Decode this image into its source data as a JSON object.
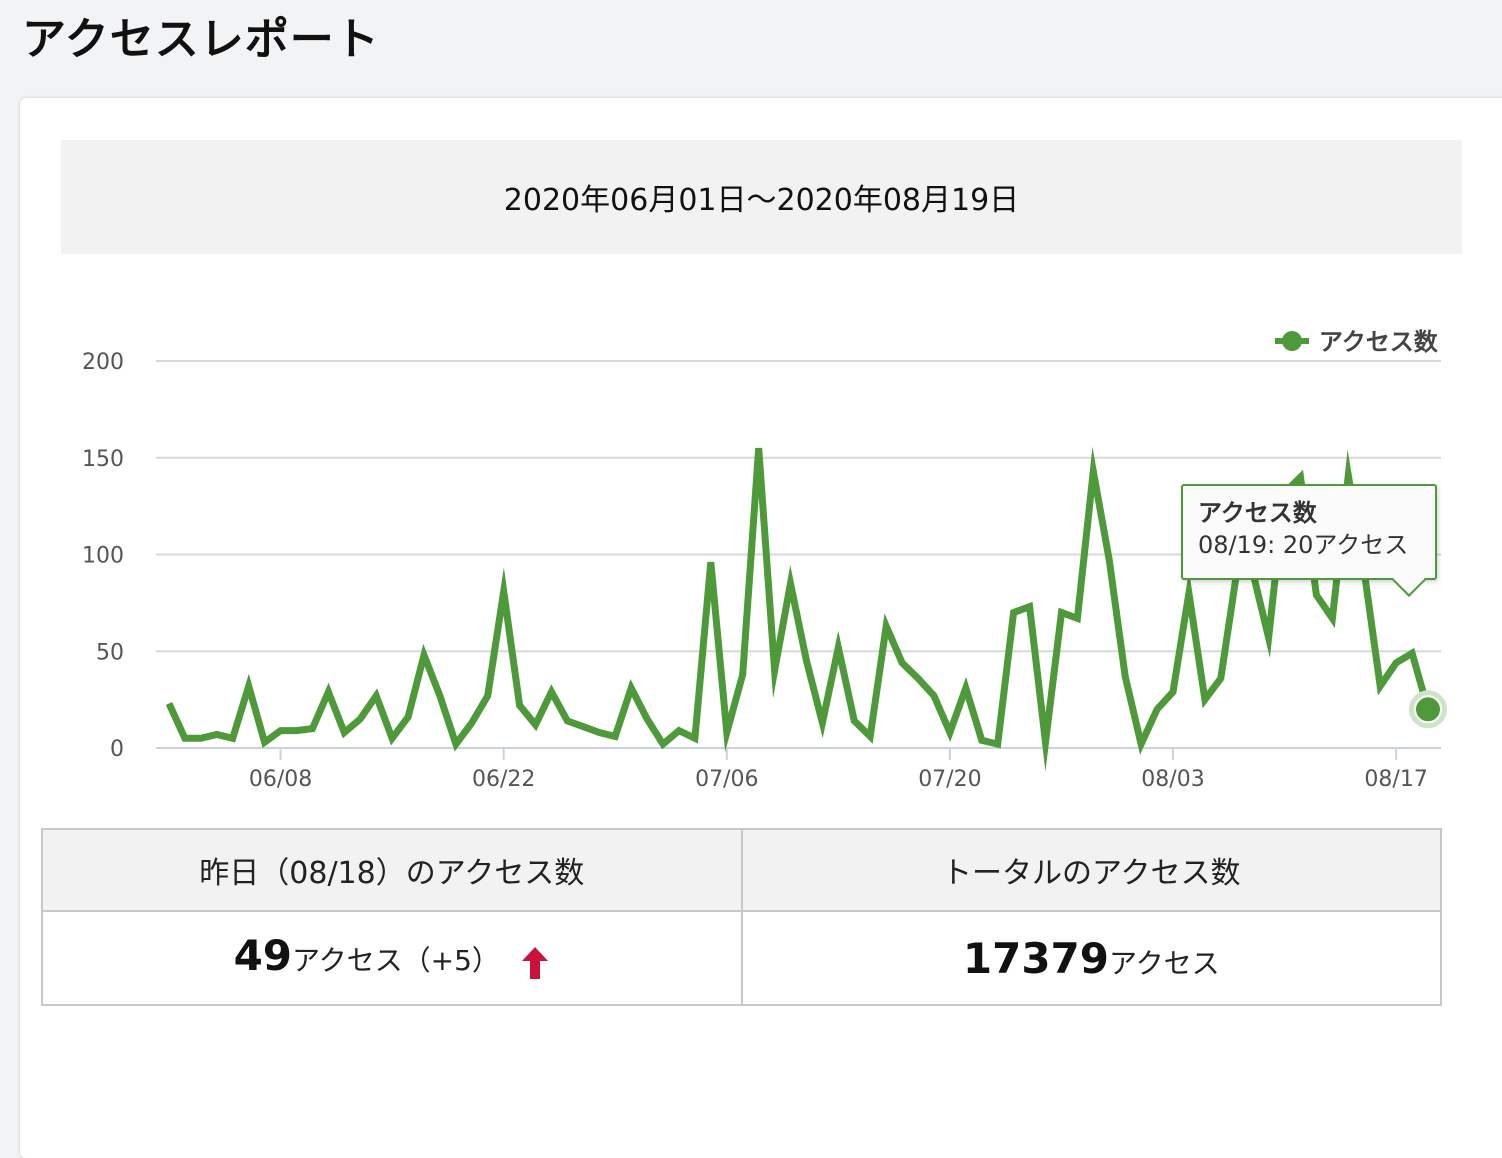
{
  "page_title": "アクセスレポート",
  "date_range": "2020年06月01日〜2020年08月19日",
  "colors": {
    "line": "#4e9a3a",
    "grid": "#d8d8d8",
    "up_arrow": "#c8143c"
  },
  "chart_data": {
    "type": "line",
    "x": [
      "06/01",
      "06/02",
      "06/03",
      "06/04",
      "06/05",
      "06/06",
      "06/07",
      "06/08",
      "06/09",
      "06/10",
      "06/11",
      "06/12",
      "06/13",
      "06/14",
      "06/15",
      "06/16",
      "06/17",
      "06/18",
      "06/19",
      "06/20",
      "06/21",
      "06/22",
      "06/23",
      "06/24",
      "06/25",
      "06/26",
      "06/27",
      "06/28",
      "06/29",
      "06/30",
      "07/01",
      "07/02",
      "07/03",
      "07/04",
      "07/05",
      "07/06",
      "07/07",
      "07/08",
      "07/09",
      "07/10",
      "07/11",
      "07/12",
      "07/13",
      "07/14",
      "07/15",
      "07/16",
      "07/17",
      "07/18",
      "07/19",
      "07/20",
      "07/21",
      "07/22",
      "07/23",
      "07/24",
      "07/25",
      "07/26",
      "07/27",
      "07/28",
      "07/29",
      "07/30",
      "07/31",
      "08/01",
      "08/02",
      "08/03",
      "08/04",
      "08/05",
      "08/06",
      "08/07",
      "08/08",
      "08/09",
      "08/10",
      "08/11",
      "08/12",
      "08/13",
      "08/14",
      "08/15",
      "08/16",
      "08/17",
      "08/18",
      "08/19"
    ],
    "series": [
      {
        "name": "アクセス数",
        "values": [
          23,
          5,
          5,
          7,
          5,
          32,
          3,
          9,
          9,
          10,
          29,
          8,
          15,
          27,
          5,
          16,
          48,
          27,
          2,
          13,
          27,
          81,
          22,
          12,
          29,
          14,
          11,
          8,
          6,
          31,
          15,
          2,
          9,
          5,
          96,
          8,
          38,
          155,
          40,
          85,
          45,
          13,
          52,
          14,
          6,
          63,
          44,
          36,
          27,
          8,
          31,
          4,
          2,
          70,
          73,
          3,
          70,
          67,
          143,
          97,
          37,
          2,
          20,
          29,
          80,
          25,
          36,
          91,
          91,
          57,
          132,
          140,
          79,
          67,
          141,
          91,
          32,
          44,
          49,
          20
        ]
      }
    ],
    "x_ticks": [
      "06/08",
      "06/22",
      "07/06",
      "07/20",
      "08/03",
      "08/17"
    ],
    "y_ticks": [
      0,
      50,
      100,
      150,
      200
    ],
    "ylim": [
      0,
      200
    ],
    "legend": {
      "position": "top-right"
    },
    "grid": true,
    "tooltip": {
      "title": "アクセス数",
      "text": "08/19: 20アクセス",
      "index": 79
    }
  },
  "stats": {
    "yesterday_header": "昨日（08/18）のアクセス数",
    "total_header": "トータルのアクセス数",
    "yesterday_value": "49",
    "yesterday_unit": "アクセス",
    "yesterday_diff": "（+5）",
    "total_value": "17379",
    "total_unit": "アクセス"
  }
}
